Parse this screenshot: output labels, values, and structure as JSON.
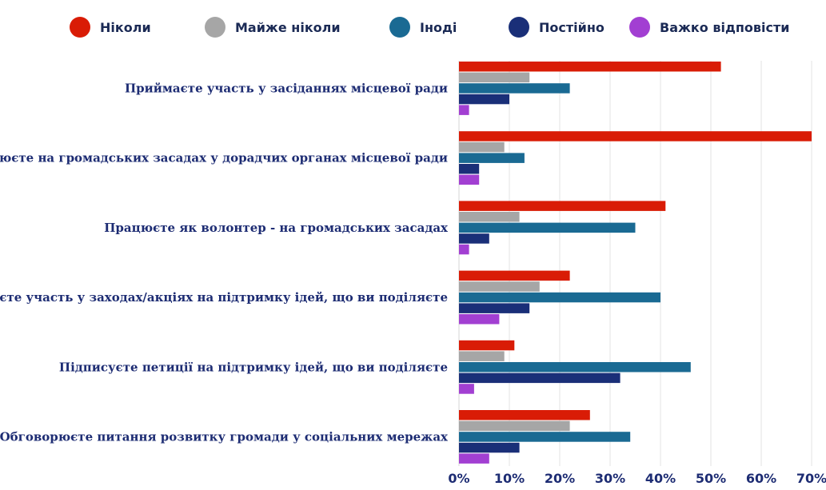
{
  "chart_data": {
    "type": "bar",
    "orientation": "horizontal",
    "categories": [
      "Приймаєте участь у засіданнях місцевої ради",
      "Працюєте на громадських засадах у дорадчих органах місцевої ради",
      "Працюєте як волонтер - на громадських засадах",
      "Приймаєте участь у заходах/акціях на підтримку ідей, що ви поділяєте",
      "Підписуєте петиції на підтримку ідей, що ви поділяєте",
      "Обговорюєте питання розвитку громади у соціальних мережах"
    ],
    "series": [
      {
        "name": "Ніколи",
        "color": "#d91c06",
        "values": [
          52,
          70,
          41,
          22,
          11,
          26
        ]
      },
      {
        "name": "Майже ніколи",
        "color": "#a6a6a6",
        "values": [
          14,
          9,
          12,
          16,
          9,
          22
        ]
      },
      {
        "name": "Іноді",
        "color": "#1a6a93",
        "values": [
          22,
          13,
          35,
          40,
          46,
          34
        ]
      },
      {
        "name": "Постійно",
        "color": "#1a2f78",
        "values": [
          10,
          4,
          6,
          14,
          32,
          12
        ]
      },
      {
        "name": "Важко відповісти",
        "color": "#a23fd2",
        "values": [
          2,
          4,
          2,
          8,
          3,
          6
        ]
      }
    ],
    "xlim": [
      0,
      70
    ],
    "ticks": [
      0,
      10,
      20,
      30,
      40,
      50,
      60,
      70
    ],
    "tick_labels": [
      "0%",
      "10%",
      "20%",
      "30%",
      "40%",
      "50%",
      "60%",
      "70%"
    ],
    "legend_position": "top",
    "grid": true
  }
}
